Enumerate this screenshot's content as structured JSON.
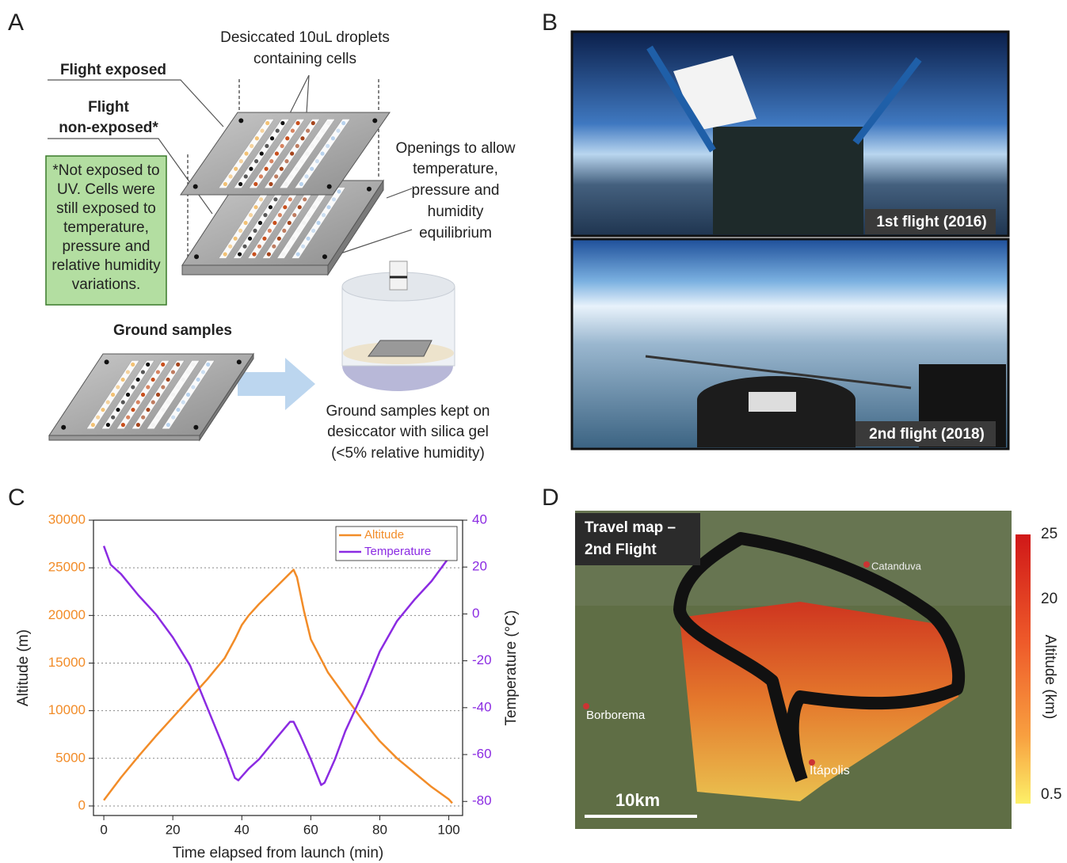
{
  "panel_labels": [
    "A",
    "B",
    "C",
    "D"
  ],
  "panel_a": {
    "top_note": [
      "Desiccated 10uL droplets",
      "containing cells"
    ],
    "flight_exposed": "Flight exposed",
    "flight_non_exposed": [
      "Flight",
      "non-exposed*"
    ],
    "note": [
      "*Not exposed to",
      "UV. Cells were",
      "still exposed to",
      "temperature,",
      "pressure and",
      "relative humidity",
      "variations."
    ],
    "openings": [
      "Openings to allow",
      "temperature,",
      "pressure and",
      "humidity",
      "equilibrium"
    ],
    "ground": "Ground samples",
    "ground_note": [
      "Ground samples kept on",
      "desiccator with silica gel",
      "(<5% relative humidity)"
    ]
  },
  "panel_b": {
    "captions": [
      "1st flight (2016)",
      "2nd flight (2018)"
    ]
  },
  "chart_data": {
    "type": "line",
    "xlabel": "Time elapsed from launch (min)",
    "ylabel": "Altitude (m)",
    "y2label": "Temperature (°C)",
    "xlim": [
      -3,
      104
    ],
    "xticks": [
      0,
      20,
      40,
      60,
      80,
      100
    ],
    "ylim": [
      -1000,
      30000
    ],
    "yticks": [
      0,
      5000,
      10000,
      15000,
      20000,
      25000,
      30000
    ],
    "y2lim": [
      -86,
      40
    ],
    "y2ticks": [
      -80,
      -60,
      -40,
      -20,
      0,
      20,
      40
    ],
    "grid": true,
    "legend": "upper right",
    "series": [
      {
        "name": "Altitude",
        "color": "#f28c28",
        "x": [
          0,
          5,
          10,
          15,
          20,
          25,
          30,
          35,
          38,
          40,
          42,
          45,
          50,
          55,
          56,
          58,
          60,
          65,
          70,
          75,
          80,
          85,
          90,
          95,
          100,
          101
        ],
        "values": [
          600,
          3000,
          5200,
          7300,
          9300,
          11300,
          13300,
          15500,
          17500,
          19000,
          20000,
          21200,
          23000,
          24800,
          24000,
          20500,
          17500,
          14000,
          11500,
          9000,
          6800,
          5000,
          3500,
          2000,
          700,
          300
        ]
      },
      {
        "name": "Temperature",
        "color": "#8b2be2",
        "axis": "y2",
        "x": [
          0,
          2,
          5,
          10,
          15,
          20,
          25,
          30,
          35,
          38,
          39,
          42,
          45,
          50,
          54,
          55,
          57,
          60,
          63,
          64,
          67,
          70,
          75,
          80,
          85,
          90,
          95,
          100,
          101
        ],
        "values": [
          29,
          21,
          17,
          8,
          0,
          -10,
          -22,
          -40,
          -58,
          -70,
          -71,
          -66,
          -62,
          -53,
          -46,
          -46,
          -52,
          -62,
          -73,
          -72,
          -62,
          -50,
          -34,
          -16,
          -3,
          6,
          14,
          24,
          29
        ]
      }
    ]
  },
  "panel_d": {
    "title": [
      "Travel map –",
      "2nd Flight"
    ],
    "places": [
      "Catanduva",
      "Borborema",
      "Itápolis"
    ],
    "scale_bar": "10km",
    "colorbar_title": "Altitude (km)",
    "colorbar_labels": [
      25,
      20,
      0.5
    ]
  }
}
